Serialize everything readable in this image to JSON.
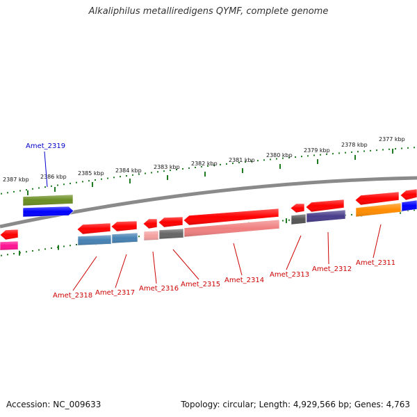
{
  "title": "Alkaliphilus metalliredigens QYMF, complete genome",
  "footer": {
    "accession": "Accession: NC_009633",
    "summary": "Topology: circular; Length: 4,929,566 bp; Genes: 4,763"
  },
  "scale_labels": [
    "2387 kbp",
    "2386 kbp",
    "2385 kbp",
    "2384 kbp",
    "2383 kbp",
    "2382 kbp",
    "2381 kbp",
    "2380 kbp",
    "2379 kbp",
    "2378 kbp",
    "2377 kbp"
  ],
  "gene_labels": [
    {
      "text": "Amet_2319",
      "color": "#0000cc"
    },
    {
      "text": "Amet_2318",
      "color": "#cc0000"
    },
    {
      "text": "Amet_2317",
      "color": "#cc0000"
    },
    {
      "text": "Amet_2316",
      "color": "#cc0000"
    },
    {
      "text": "Amet_2315",
      "color": "#cc0000"
    },
    {
      "text": "Amet_2314",
      "color": "#cc0000"
    },
    {
      "text": "Amet_2313",
      "color": "#cc0000"
    },
    {
      "text": "Amet_2312",
      "color": "#cc0000"
    },
    {
      "text": "Amet_2311",
      "color": "#cc0000"
    }
  ],
  "colors": {
    "backbone": "#8a8a8a",
    "ruler": "#1e7a1e",
    "gene_red": "#ff0000",
    "cog_olive": "#6b8e23",
    "cog_blue": "#0000ff",
    "cog_magenta": "#ff1493",
    "cog_steelblue": "#4682b4",
    "cog_salmon": "#f4a0a0",
    "cog_gray": "#666666",
    "cog_pink": "#f08080",
    "cog_darkgray": "#555555",
    "cog_slateblue": "#483d8b",
    "cog_orange": "#ff8c00"
  }
}
